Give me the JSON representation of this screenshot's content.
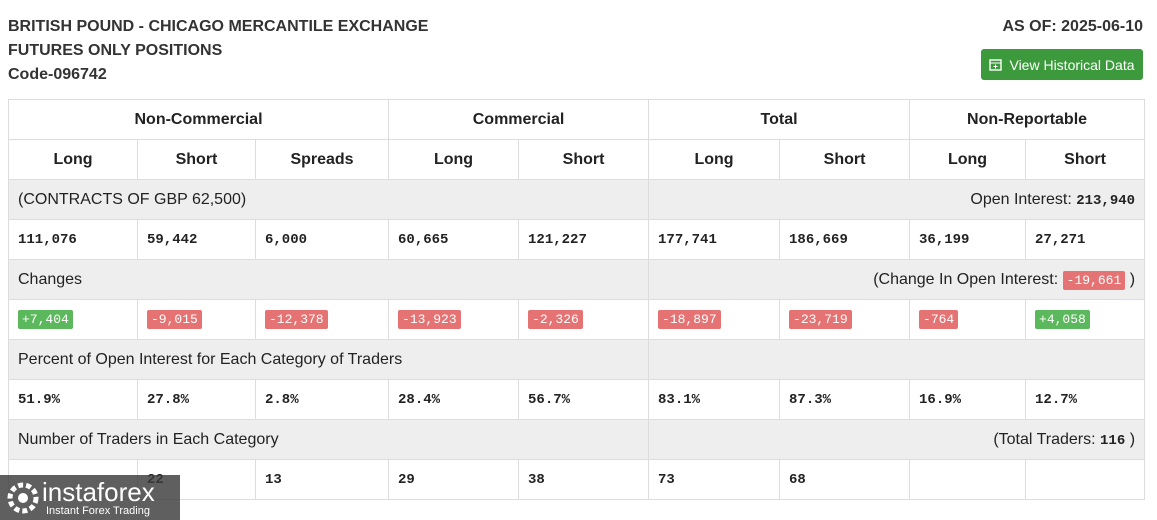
{
  "header": {
    "title_lines": [
      "BRITISH POUND - CHICAGO MERCANTILE EXCHANGE",
      "FUTURES ONLY POSITIONS"
    ],
    "code": "Code-096742",
    "as_of": "AS OF: 2025-06-10",
    "button": "View Historical Data"
  },
  "table": {
    "groups": [
      "Non-Commercial",
      "Commercial",
      "Total",
      "Non-Reportable"
    ],
    "columns": [
      "Long",
      "Short",
      "Spreads",
      "Long",
      "Short",
      "Long",
      "Short",
      "Long",
      "Short"
    ],
    "sections": [
      {
        "label": "(CONTRACTS OF GBP 62,500)",
        "summary_prefix": "Open Interest:",
        "summary_value": "213,940",
        "values": [
          "111,076",
          "59,442",
          "6,000",
          "60,665",
          "121,227",
          "177,741",
          "186,669",
          "36,199",
          "27,271"
        ]
      },
      {
        "label": "Changes",
        "summary_prefix": "(Change In Open Interest:",
        "summary_value": "-19,661",
        "summary_suffix": ")",
        "values": [
          "+7,404",
          "-9,015",
          "-12,378",
          "-13,923",
          "-2,326",
          "-18,897",
          "-23,719",
          "-764",
          "+4,058"
        ]
      },
      {
        "label": "Percent of Open Interest for Each Category of Traders",
        "values": [
          "51.9%",
          "27.8%",
          "2.8%",
          "28.4%",
          "56.7%",
          "83.1%",
          "87.3%",
          "16.9%",
          "12.7%"
        ]
      },
      {
        "label": "Number of Traders in Each Category",
        "summary_prefix": "(Total Traders:",
        "summary_value": "116",
        "summary_suffix": ")",
        "values": [
          null,
          "22",
          "13",
          "29",
          "38",
          "73",
          "68",
          null,
          null
        ]
      }
    ]
  },
  "watermark": {
    "brand": "instaforex",
    "tagline": "Instant Forex Trading"
  }
}
